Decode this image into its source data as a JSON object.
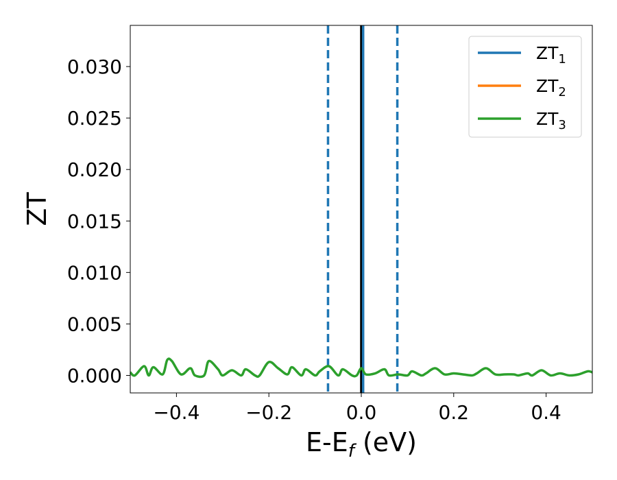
{
  "chart_data": {
    "type": "line",
    "title": "",
    "xlabel": {
      "main": "E-E",
      "subscript": "f",
      "suffix": " (eV)"
    },
    "ylabel": "ZT",
    "xlim": [
      -0.5,
      0.5
    ],
    "ylim": [
      -0.0017,
      0.034
    ],
    "xticks": [
      -0.4,
      -0.2,
      0.0,
      0.2,
      0.4
    ],
    "xtick_labels": [
      "−0.4",
      "−0.2",
      "0.0",
      "0.2",
      "0.4"
    ],
    "yticks": [
      0.0,
      0.005,
      0.01,
      0.015,
      0.02,
      0.025,
      0.03
    ],
    "ytick_labels": [
      "0.000",
      "0.005",
      "0.010",
      "0.015",
      "0.020",
      "0.025",
      "0.030"
    ],
    "grid": false,
    "legend_position": "top-right",
    "colors": {
      "blue": "#1f77b4",
      "orange": "#ff7f0e",
      "green": "#2ca02c",
      "black": "#000000"
    },
    "series": [
      {
        "name": "ZT",
        "subscript": "1",
        "color": "#1f77b4",
        "x": [],
        "y": []
      },
      {
        "name": "ZT",
        "subscript": "2",
        "color": "#ff7f0e",
        "x": [],
        "y": []
      },
      {
        "name": "ZT",
        "subscript": "3",
        "color": "#2ca02c",
        "x": [
          -0.5,
          -0.49,
          -0.47,
          -0.46,
          -0.45,
          -0.43,
          -0.42,
          -0.41,
          -0.39,
          -0.37,
          -0.36,
          -0.34,
          -0.33,
          -0.31,
          -0.3,
          -0.28,
          -0.26,
          -0.25,
          -0.23,
          -0.22,
          -0.2,
          -0.18,
          -0.16,
          -0.15,
          -0.13,
          -0.12,
          -0.1,
          -0.09,
          -0.07,
          -0.05,
          -0.04,
          -0.02,
          -0.01,
          0.0,
          0.01,
          0.03,
          0.05,
          0.06,
          0.08,
          0.1,
          0.11,
          0.13,
          0.14,
          0.16,
          0.18,
          0.2,
          0.22,
          0.24,
          0.25,
          0.27,
          0.29,
          0.31,
          0.33,
          0.34,
          0.36,
          0.37,
          0.39,
          0.41,
          0.43,
          0.45,
          0.47,
          0.49,
          0.5
        ],
        "y": [
          0.0003,
          0.0,
          0.0009,
          0.0,
          0.0008,
          0.0001,
          0.0015,
          0.0014,
          0.0001,
          0.0007,
          0.0,
          0.0,
          0.0014,
          0.0006,
          0.0,
          0.0005,
          0.0,
          0.0006,
          0.0,
          0.0,
          0.0013,
          0.0007,
          0.0001,
          0.0008,
          0.0,
          0.0006,
          0.0,
          0.0004,
          0.0009,
          0.0,
          0.0006,
          0.0,
          0.0,
          0.0007,
          0.0001,
          0.0002,
          0.0006,
          0.0,
          0.0001,
          0.0,
          0.0004,
          0.0,
          0.0002,
          0.0007,
          0.0001,
          0.0002,
          0.0001,
          0.0,
          0.0002,
          0.0007,
          0.0001,
          0.0001,
          0.0001,
          0.0,
          0.0002,
          0.0,
          0.0005,
          0.0,
          0.0002,
          0.0,
          0.0001,
          0.0004,
          0.0003
        ]
      }
    ],
    "vertical_lines": [
      {
        "x": -0.072,
        "color": "#1f77b4",
        "style": "dashed"
      },
      {
        "x": 0.0,
        "color": "#000000",
        "style": "solid"
      },
      {
        "x": 0.004,
        "color": "#1f77b4",
        "style": "solid"
      },
      {
        "x": 0.078,
        "color": "#1f77b4",
        "style": "dashed"
      }
    ]
  }
}
